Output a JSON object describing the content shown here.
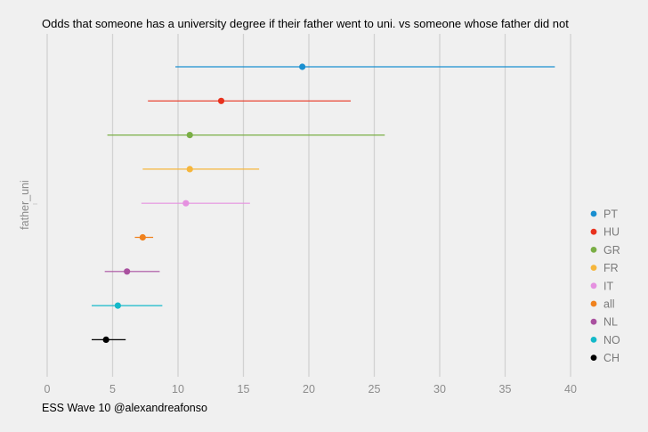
{
  "chart_data": {
    "type": "errorbar",
    "title": "Odds that someone has a university degree if their father went to uni. vs someone whose father did not",
    "ylabel": "father_uni",
    "xlabel": "",
    "caption": "ESS Wave 10 @alexandreafonso",
    "xlim": [
      0,
      40
    ],
    "x_ticks": [
      "0",
      "5",
      "10",
      "15",
      "20",
      "25",
      "30",
      "35",
      "40"
    ],
    "grid": "vertical",
    "legend": "right",
    "series": [
      {
        "name": "PT",
        "value": 19.5,
        "low": 9.8,
        "high": 38.8,
        "color": "#1a8fd0"
      },
      {
        "name": "HU",
        "value": 13.3,
        "low": 7.7,
        "high": 23.2,
        "color": "#e8321e"
      },
      {
        "name": "GR",
        "value": 10.9,
        "low": 4.6,
        "high": 25.8,
        "color": "#7aae45"
      },
      {
        "name": "FR",
        "value": 10.9,
        "low": 7.3,
        "high": 16.2,
        "color": "#f6b63c"
      },
      {
        "name": "IT",
        "value": 10.6,
        "low": 7.2,
        "high": 15.5,
        "color": "#e591e0"
      },
      {
        "name": "all",
        "value": 7.3,
        "low": 6.7,
        "high": 8.1,
        "color": "#f0821e"
      },
      {
        "name": "NL",
        "value": 6.1,
        "low": 4.4,
        "high": 8.6,
        "color": "#a9509f"
      },
      {
        "name": "NO",
        "value": 5.4,
        "low": 3.4,
        "high": 8.8,
        "color": "#14b9c9"
      },
      {
        "name": "CH",
        "value": 4.5,
        "low": 3.4,
        "high": 6.0,
        "color": "#000000"
      }
    ]
  }
}
